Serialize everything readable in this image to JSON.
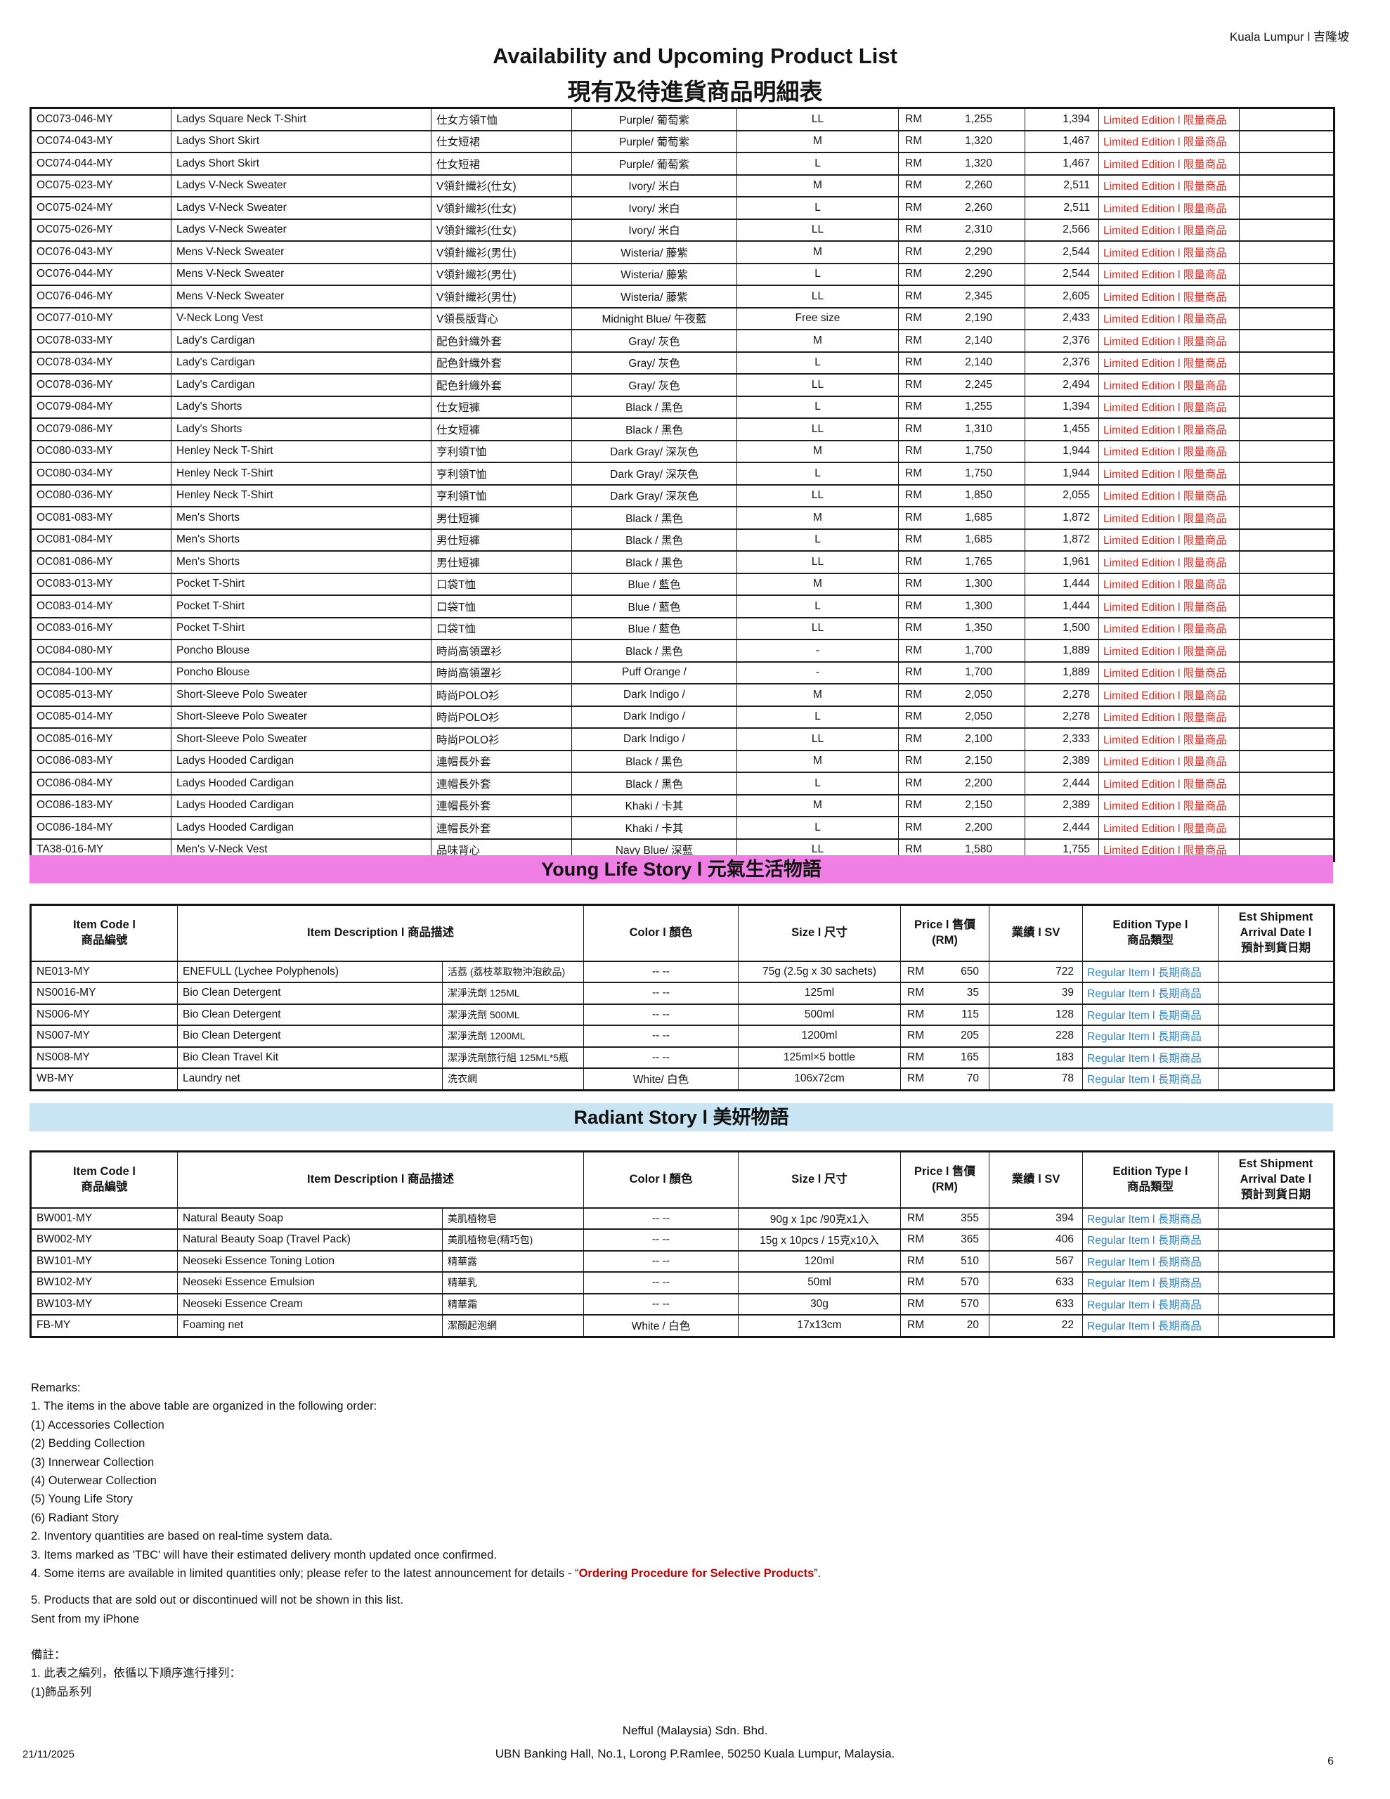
{
  "header": {
    "location": "Kuala Lumpur l 吉隆坡",
    "title_en": "Availability and Upcoming Product List",
    "title_zh": "現有及待進貨商品明細表"
  },
  "colors": {
    "banner_pink": "#ef7fe4",
    "banner_blue": "#c9e5f3",
    "limited_red": "#dc2b22",
    "regular_blue": "#2f86c6",
    "remark_red": "#c00000"
  },
  "main_table": {
    "rows": [
      {
        "code": "OC073-046-MY",
        "desc_en": "Ladys Square Neck T-Shirt",
        "desc_zh": "仕女方領T恤",
        "color": "Purple/ 葡萄紫",
        "size": "LL",
        "currency": "RM",
        "price": "1,255",
        "sv": "1,394",
        "edition": "Limited Edition l 限量商品"
      },
      {
        "code": "OC074-043-MY",
        "desc_en": "Ladys Short Skirt",
        "desc_zh": "仕女短裙",
        "color": "Purple/ 葡萄紫",
        "size": "M",
        "currency": "RM",
        "price": "1,320",
        "sv": "1,467",
        "edition": "Limited Edition l 限量商品"
      },
      {
        "code": "OC074-044-MY",
        "desc_en": "Ladys Short Skirt",
        "desc_zh": "仕女短裙",
        "color": "Purple/ 葡萄紫",
        "size": "L",
        "currency": "RM",
        "price": "1,320",
        "sv": "1,467",
        "edition": "Limited Edition l 限量商品"
      },
      {
        "code": "OC075-023-MY",
        "desc_en": "Ladys V-Neck Sweater",
        "desc_zh": "V領針織衫(仕女)",
        "color": "Ivory/ 米白",
        "size": "M",
        "currency": "RM",
        "price": "2,260",
        "sv": "2,511",
        "edition": "Limited Edition l 限量商品"
      },
      {
        "code": "OC075-024-MY",
        "desc_en": "Ladys V-Neck Sweater",
        "desc_zh": "V領針織衫(仕女)",
        "color": "Ivory/ 米白",
        "size": "L",
        "currency": "RM",
        "price": "2,260",
        "sv": "2,511",
        "edition": "Limited Edition l 限量商品"
      },
      {
        "code": "OC075-026-MY",
        "desc_en": "Ladys V-Neck Sweater",
        "desc_zh": "V領針織衫(仕女)",
        "color": "Ivory/ 米白",
        "size": "LL",
        "currency": "RM",
        "price": "2,310",
        "sv": "2,566",
        "edition": "Limited Edition l 限量商品"
      },
      {
        "code": "OC076-043-MY",
        "desc_en": "Mens V-Neck Sweater",
        "desc_zh": "V領針織衫(男仕)",
        "color": "Wisteria/ 藤紫",
        "size": "M",
        "currency": "RM",
        "price": "2,290",
        "sv": "2,544",
        "edition": "Limited Edition l 限量商品"
      },
      {
        "code": "OC076-044-MY",
        "desc_en": "Mens V-Neck Sweater",
        "desc_zh": "V領針織衫(男仕)",
        "color": "Wisteria/ 藤紫",
        "size": "L",
        "currency": "RM",
        "price": "2,290",
        "sv": "2,544",
        "edition": "Limited Edition l 限量商品"
      },
      {
        "code": "OC076-046-MY",
        "desc_en": "Mens V-Neck Sweater",
        "desc_zh": "V領針織衫(男仕)",
        "color": "Wisteria/ 藤紫",
        "size": "LL",
        "currency": "RM",
        "price": "2,345",
        "sv": "2,605",
        "edition": "Limited Edition l 限量商品"
      },
      {
        "code": "OC077-010-MY",
        "desc_en": "V-Neck Long Vest",
        "desc_zh": "V領長版背心",
        "color": "Midnight Blue/ 午夜藍",
        "size": "Free size",
        "currency": "RM",
        "price": "2,190",
        "sv": "2,433",
        "edition": "Limited Edition l 限量商品"
      },
      {
        "code": "OC078-033-MY",
        "desc_en": "Lady's Cardigan",
        "desc_zh": "配色針織外套",
        "color": "Gray/ 灰色",
        "size": "M",
        "currency": "RM",
        "price": "2,140",
        "sv": "2,376",
        "edition": "Limited Edition l 限量商品"
      },
      {
        "code": "OC078-034-MY",
        "desc_en": "Lady's Cardigan",
        "desc_zh": "配色針織外套",
        "color": "Gray/ 灰色",
        "size": "L",
        "currency": "RM",
        "price": "2,140",
        "sv": "2,376",
        "edition": "Limited Edition l 限量商品"
      },
      {
        "code": "OC078-036-MY",
        "desc_en": "Lady's Cardigan",
        "desc_zh": "配色針織外套",
        "color": "Gray/ 灰色",
        "size": "LL",
        "currency": "RM",
        "price": "2,245",
        "sv": "2,494",
        "edition": "Limited Edition l 限量商品"
      },
      {
        "code": "OC079-084-MY",
        "desc_en": "Lady's Shorts",
        "desc_zh": "仕女短褲",
        "color": "Black / 黑色",
        "size": "L",
        "currency": "RM",
        "price": "1,255",
        "sv": "1,394",
        "edition": "Limited Edition l 限量商品"
      },
      {
        "code": "OC079-086-MY",
        "desc_en": "Lady's Shorts",
        "desc_zh": "仕女短褲",
        "color": "Black / 黑色",
        "size": "LL",
        "currency": "RM",
        "price": "1,310",
        "sv": "1,455",
        "edition": "Limited Edition l 限量商品"
      },
      {
        "code": "OC080-033-MY",
        "desc_en": "Henley Neck T-Shirt",
        "desc_zh": "亨利領T恤",
        "color": "Dark Gray/ 深灰色",
        "size": "M",
        "currency": "RM",
        "price": "1,750",
        "sv": "1,944",
        "edition": "Limited Edition l 限量商品"
      },
      {
        "code": "OC080-034-MY",
        "desc_en": "Henley Neck T-Shirt",
        "desc_zh": "亨利領T恤",
        "color": "Dark Gray/ 深灰色",
        "size": "L",
        "currency": "RM",
        "price": "1,750",
        "sv": "1,944",
        "edition": "Limited Edition l 限量商品"
      },
      {
        "code": "OC080-036-MY",
        "desc_en": "Henley Neck T-Shirt",
        "desc_zh": "亨利領T恤",
        "color": "Dark Gray/ 深灰色",
        "size": "LL",
        "currency": "RM",
        "price": "1,850",
        "sv": "2,055",
        "edition": "Limited Edition l 限量商品"
      },
      {
        "code": "OC081-083-MY",
        "desc_en": "Men's Shorts",
        "desc_zh": "男仕短褲",
        "color": "Black / 黑色",
        "size": "M",
        "currency": "RM",
        "price": "1,685",
        "sv": "1,872",
        "edition": "Limited Edition l 限量商品"
      },
      {
        "code": "OC081-084-MY",
        "desc_en": "Men's Shorts",
        "desc_zh": "男仕短褲",
        "color": "Black / 黑色",
        "size": "L",
        "currency": "RM",
        "price": "1,685",
        "sv": "1,872",
        "edition": "Limited Edition l 限量商品"
      },
      {
        "code": "OC081-086-MY",
        "desc_en": "Men's Shorts",
        "desc_zh": "男仕短褲",
        "color": "Black / 黑色",
        "size": "LL",
        "currency": "RM",
        "price": "1,765",
        "sv": "1,961",
        "edition": "Limited Edition l 限量商品"
      },
      {
        "code": "OC083-013-MY",
        "desc_en": "Pocket T-Shirt",
        "desc_zh": "口袋T恤",
        "color": "Blue / 藍色",
        "size": "M",
        "currency": "RM",
        "price": "1,300",
        "sv": "1,444",
        "edition": "Limited Edition l 限量商品"
      },
      {
        "code": "OC083-014-MY",
        "desc_en": "Pocket T-Shirt",
        "desc_zh": "口袋T恤",
        "color": "Blue / 藍色",
        "size": "L",
        "currency": "RM",
        "price": "1,300",
        "sv": "1,444",
        "edition": "Limited Edition l 限量商品"
      },
      {
        "code": "OC083-016-MY",
        "desc_en": "Pocket T-Shirt",
        "desc_zh": "口袋T恤",
        "color": "Blue / 藍色",
        "size": "LL",
        "currency": "RM",
        "price": "1,350",
        "sv": "1,500",
        "edition": "Limited Edition l 限量商品"
      },
      {
        "code": "OC084-080-MY",
        "desc_en": "Poncho Blouse",
        "desc_zh": "時尚高領罩衫",
        "color": "Black / 黑色",
        "size": "-",
        "currency": "RM",
        "price": "1,700",
        "sv": "1,889",
        "edition": "Limited Edition l 限量商品"
      },
      {
        "code": "OC084-100-MY",
        "desc_en": "Poncho Blouse",
        "desc_zh": "時尚高領罩衫",
        "color": "Puff Orange /",
        "size": "-",
        "currency": "RM",
        "price": "1,700",
        "sv": "1,889",
        "edition": "Limited Edition l 限量商品"
      },
      {
        "code": "OC085-013-MY",
        "desc_en": "Short-Sleeve Polo Sweater",
        "desc_zh": "時尚POLO衫",
        "color": "Dark Indigo /",
        "size": "M",
        "currency": "RM",
        "price": "2,050",
        "sv": "2,278",
        "edition": "Limited Edition l 限量商品"
      },
      {
        "code": "OC085-014-MY",
        "desc_en": "Short-Sleeve Polo Sweater",
        "desc_zh": "時尚POLO衫",
        "color": "Dark Indigo /",
        "size": "L",
        "currency": "RM",
        "price": "2,050",
        "sv": "2,278",
        "edition": "Limited Edition l 限量商品"
      },
      {
        "code": "OC085-016-MY",
        "desc_en": "Short-Sleeve Polo Sweater",
        "desc_zh": "時尚POLO衫",
        "color": "Dark Indigo /",
        "size": "LL",
        "currency": "RM",
        "price": "2,100",
        "sv": "2,333",
        "edition": "Limited Edition l 限量商品"
      },
      {
        "code": "OC086-083-MY",
        "desc_en": "Ladys Hooded Cardigan",
        "desc_zh": "連帽長外套",
        "color": "Black / 黑色",
        "size": "M",
        "currency": "RM",
        "price": "2,150",
        "sv": "2,389",
        "edition": "Limited Edition l 限量商品"
      },
      {
        "code": "OC086-084-MY",
        "desc_en": "Ladys Hooded Cardigan",
        "desc_zh": "連帽長外套",
        "color": "Black / 黑色",
        "size": "L",
        "currency": "RM",
        "price": "2,200",
        "sv": "2,444",
        "edition": "Limited Edition l 限量商品"
      },
      {
        "code": "OC086-183-MY",
        "desc_en": "Ladys Hooded Cardigan",
        "desc_zh": "連帽長外套",
        "color": "Khaki / 卡其",
        "size": "M",
        "currency": "RM",
        "price": "2,150",
        "sv": "2,389",
        "edition": "Limited Edition l 限量商品"
      },
      {
        "code": "OC086-184-MY",
        "desc_en": "Ladys Hooded Cardigan",
        "desc_zh": "連帽長外套",
        "color": "Khaki / 卡其",
        "size": "L",
        "currency": "RM",
        "price": "2,200",
        "sv": "2,444",
        "edition": "Limited Edition l 限量商品"
      },
      {
        "code": "TA38-016-MY",
        "desc_en": "Men's V-Neck Vest",
        "desc_zh": "品味背心",
        "color": "Navy Blue/ 深藍",
        "size": "LL",
        "currency": "RM",
        "price": "1,580",
        "sv": "1,755",
        "edition": "Limited Edition l 限量商品"
      }
    ]
  },
  "section_headers": {
    "code": "Item Code l\n商品編號",
    "desc": "Item Description l 商品描述",
    "color": "Color l 顏色",
    "size": "Size l 尺寸",
    "price": "Price l 售價\n(RM)",
    "sv": "業績 l SV",
    "edition": "Edition Type l\n商品類型",
    "est": "Est Shipment\nArrival Date l\n預計到貨日期"
  },
  "young_life": {
    "banner": "Young Life Story l 元氣生活物語",
    "rows": [
      {
        "code": "NE013-MY",
        "desc_en": "ENEFULL (Lychee Polyphenols)",
        "desc_zh": "活荔 (荔枝萃取物沖泡飲品)",
        "color": "-- --",
        "size": "75g (2.5g x 30 sachets)",
        "currency": "RM",
        "price": "650",
        "sv": "722",
        "edition": "Regular Item l 長期商品"
      },
      {
        "code": "NS0016-MY",
        "desc_en": "Bio Clean Detergent",
        "desc_zh": "潔淨洗劑 125ML",
        "color": "-- --",
        "size": "125ml",
        "currency": "RM",
        "price": "35",
        "sv": "39",
        "edition": "Regular Item l 長期商品"
      },
      {
        "code": "NS006-MY",
        "desc_en": "Bio Clean Detergent",
        "desc_zh": "潔淨洗劑 500ML",
        "color": "-- --",
        "size": "500ml",
        "currency": "RM",
        "price": "115",
        "sv": "128",
        "edition": "Regular Item l 長期商品"
      },
      {
        "code": "NS007-MY",
        "desc_en": "Bio Clean Detergent",
        "desc_zh": "潔淨洗劑 1200ML",
        "color": "-- --",
        "size": "1200ml",
        "currency": "RM",
        "price": "205",
        "sv": "228",
        "edition": "Regular Item l 長期商品"
      },
      {
        "code": "NS008-MY",
        "desc_en": "Bio Clean Travel Kit",
        "desc_zh": "潔淨洗劑旅行組 125ML*5瓶",
        "color": "-- --",
        "size": "125ml×5 bottle",
        "currency": "RM",
        "price": "165",
        "sv": "183",
        "edition": "Regular Item l 長期商品"
      },
      {
        "code": "WB-MY",
        "desc_en": "Laundry net",
        "desc_zh": "洗衣網",
        "color": "White/ 白色",
        "size": "106x72cm",
        "currency": "RM",
        "price": "70",
        "sv": "78",
        "edition": "Regular Item l 長期商品"
      }
    ]
  },
  "radiant": {
    "banner": "Radiant Story l 美妍物語",
    "rows": [
      {
        "code": "BW001-MY",
        "desc_en": "Natural Beauty Soap",
        "desc_zh": "美肌植物皂",
        "color": "-- --",
        "size": "90g x 1pc /90克x1入",
        "currency": "RM",
        "price": "355",
        "sv": "394",
        "edition": "Regular Item l 長期商品"
      },
      {
        "code": "BW002-MY",
        "desc_en": "Natural Beauty Soap (Travel Pack)",
        "desc_zh": "美肌植物皂(精巧包)",
        "color": "-- --",
        "size": "15g x 10pcs / 15克x10入",
        "currency": "RM",
        "price": "365",
        "sv": "406",
        "edition": "Regular Item l 長期商品"
      },
      {
        "code": "BW101-MY",
        "desc_en": "Neoseki Essence Toning Lotion",
        "desc_zh": "精華露",
        "color": "-- --",
        "size": "120ml",
        "currency": "RM",
        "price": "510",
        "sv": "567",
        "edition": "Regular Item l 長期商品"
      },
      {
        "code": "BW102-MY",
        "desc_en": "Neoseki Essence Emulsion",
        "desc_zh": "精華乳",
        "color": "-- --",
        "size": "50ml",
        "currency": "RM",
        "price": "570",
        "sv": "633",
        "edition": "Regular Item l 長期商品"
      },
      {
        "code": "BW103-MY",
        "desc_en": "Neoseki Essence Cream",
        "desc_zh": "精華霜",
        "color": "-- --",
        "size": "30g",
        "currency": "RM",
        "price": "570",
        "sv": "633",
        "edition": "Regular Item l 長期商品"
      },
      {
        "code": "FB-MY",
        "desc_en": "Foaming net",
        "desc_zh": "潔顏起泡網",
        "color": "White / 白色",
        "size": "17x13cm",
        "currency": "RM",
        "price": "20",
        "sv": "22",
        "edition": "Regular Item l 長期商品"
      }
    ]
  },
  "remarks": {
    "title": "Remarks:",
    "lines": [
      "1. The items in the above table are organized in the following order:",
      "(1) Accessories Collection",
      "(2) Bedding Collection",
      "(3) Innerwear Collection",
      "(4) Outerwear Collection",
      "(5) Young Life Story",
      "(6) Radiant Story",
      "2. Inventory quantities are based on real-time system data.",
      "3. Items marked as 'TBC' will have their estimated delivery month updated once confirmed."
    ],
    "line4_prefix": "4. Some items are available in limited quantities only; please refer to the latest announcement for details - “",
    "line4_red": "Ordering Procedure for Selective Products",
    "line4_suffix": "”.",
    "line5": "5. Products that are sold out or discontinued will not be shown in this list.",
    "sent": "Sent from my iPhone",
    "zh_title": "備註：",
    "zh_line1": "1. 此表之編列，依循以下順序進行排列：",
    "zh_line2": "(1)飾品系列"
  },
  "footer": {
    "company": "Nefful (Malaysia) Sdn. Bhd.",
    "address": "UBN Banking Hall, No.1, Lorong P.Ramlee, 50250 Kuala Lumpur, Malaysia.",
    "date": "21/11/2025",
    "page": "6"
  }
}
